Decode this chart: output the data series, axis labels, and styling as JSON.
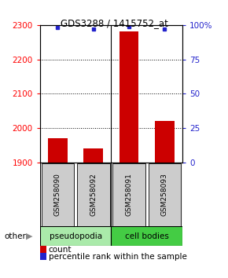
{
  "title": "GDS3288 / 1415752_at",
  "samples": [
    "GSM258090",
    "GSM258092",
    "GSM258091",
    "GSM258093"
  ],
  "bar_values": [
    1970,
    1942,
    2282,
    2022
  ],
  "percentile_values": [
    98,
    97,
    99,
    97
  ],
  "ylim": [
    1900,
    2300
  ],
  "yticks_left": [
    1900,
    2000,
    2100,
    2200,
    2300
  ],
  "yticks_right_labels": [
    "0",
    "25",
    "50",
    "75",
    "100%"
  ],
  "yticks_right_pct": [
    0,
    25,
    50,
    75,
    100
  ],
  "bar_color": "#cc0000",
  "dot_color": "#2222cc",
  "bar_width": 0.55,
  "group1_color": "#aaeaaa",
  "group2_color": "#44cc44",
  "other_label": "other",
  "legend_count_label": "count",
  "legend_pct_label": "percentile rank within the sample"
}
